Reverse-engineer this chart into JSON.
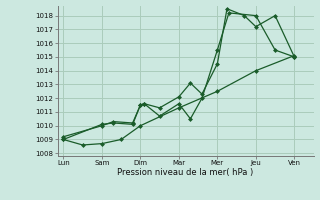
{
  "background_color": "#cce8e0",
  "grid_color": "#aaccbb",
  "line_color": "#1a5c2a",
  "xlabel": "Pression niveau de la mer( hPa )",
  "ylim": [
    1007.8,
    1018.7
  ],
  "yticks": [
    1008,
    1009,
    1010,
    1011,
    1012,
    1013,
    1014,
    1015,
    1016,
    1017,
    1018
  ],
  "x_labels": [
    "Lun",
    "Sam",
    "Dim",
    "Mar",
    "Mer",
    "Jeu",
    "Ven"
  ],
  "x_positions": [
    0,
    1,
    2,
    3,
    4,
    5,
    6
  ],
  "xlim": [
    -0.15,
    6.5
  ],
  "series1_x": [
    0,
    0.5,
    1.0,
    1.5,
    2.0,
    3.0,
    4.0,
    5.0,
    6.0
  ],
  "series1_y": [
    1009.0,
    1008.6,
    1008.7,
    1009.0,
    1010.0,
    1011.3,
    1012.5,
    1014.0,
    1015.1
  ],
  "series2_x": [
    0,
    1.0,
    1.3,
    1.8,
    2.0,
    2.1,
    2.5,
    3.0,
    3.3,
    3.6,
    4.0,
    4.3,
    5.0,
    5.5,
    6.0
  ],
  "series2_y": [
    1009.0,
    1010.1,
    1010.2,
    1010.1,
    1011.5,
    1011.6,
    1010.7,
    1011.6,
    1010.5,
    1012.0,
    1015.5,
    1018.2,
    1018.0,
    1015.5,
    1015.0
  ],
  "series3_x": [
    0,
    1.0,
    1.3,
    1.8,
    2.0,
    2.1,
    2.5,
    3.0,
    3.3,
    3.6,
    4.0,
    4.25,
    4.7,
    5.0,
    5.5,
    6.0
  ],
  "series3_y": [
    1009.2,
    1010.0,
    1010.3,
    1010.2,
    1011.5,
    1011.6,
    1011.3,
    1012.1,
    1013.1,
    1012.3,
    1014.5,
    1018.5,
    1018.0,
    1017.2,
    1018.0,
    1015.0
  ]
}
